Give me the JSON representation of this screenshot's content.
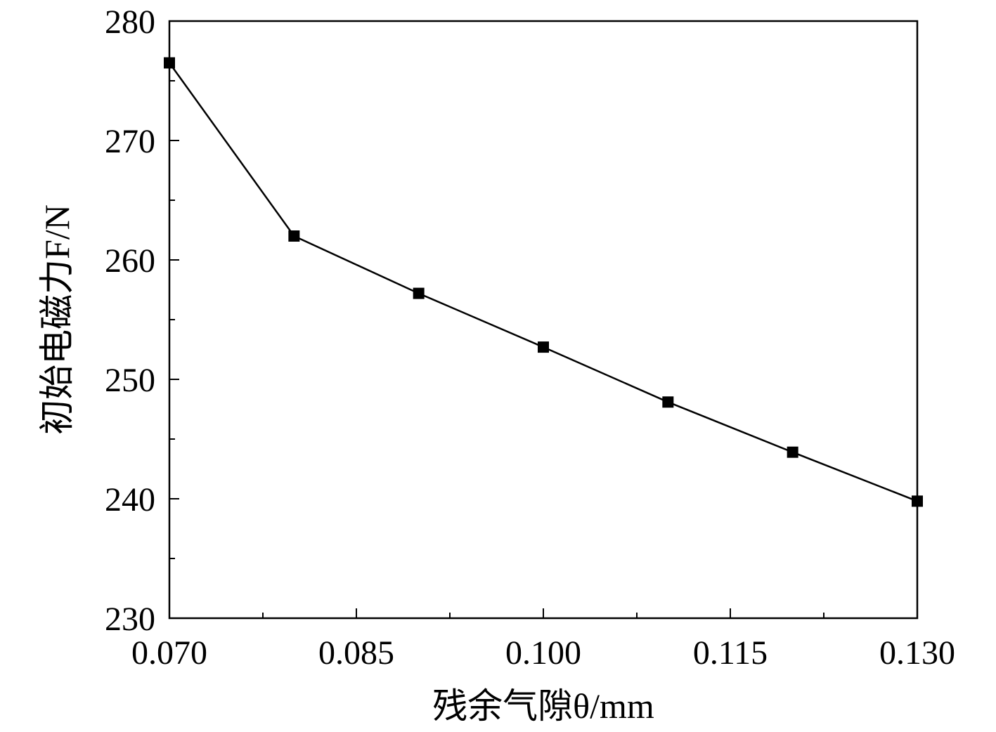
{
  "chart_data": {
    "type": "line",
    "title": "",
    "xlabel": "残余气隙θ/mm",
    "ylabel": "初始电磁力F/N",
    "xlim": [
      0.07,
      0.13
    ],
    "ylim": [
      230,
      280
    ],
    "xticks": [
      "0.070",
      "0.085",
      "0.100",
      "0.115",
      "0.130"
    ],
    "xtick_values": [
      0.07,
      0.085,
      0.1,
      0.115,
      0.13
    ],
    "yticks": [
      "230",
      "240",
      "250",
      "260",
      "270",
      "280"
    ],
    "ytick_values": [
      230,
      240,
      250,
      260,
      270,
      280
    ],
    "grid": false,
    "series": [
      {
        "name": "F",
        "marker": "square",
        "color": "#000000",
        "x": [
          0.07,
          0.08,
          0.09,
          0.1,
          0.11,
          0.12,
          0.13
        ],
        "y": [
          276.5,
          262.0,
          257.2,
          252.7,
          248.1,
          243.9,
          239.8
        ]
      }
    ]
  }
}
